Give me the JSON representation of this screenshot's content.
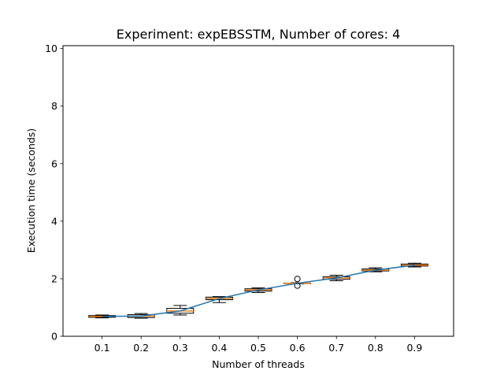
{
  "chart_data": {
    "type": "box",
    "title": "Experiment: expEBSSTM, Number of cores: 4",
    "xlabel": "Number of threads",
    "ylabel": "Execution time (seconds)",
    "ylim": [
      0,
      10.1
    ],
    "yticks": [
      0,
      2,
      4,
      6,
      8,
      10
    ],
    "categories": [
      "0.1",
      "0.2",
      "0.3",
      "0.4",
      "0.5",
      "0.6",
      "0.7",
      "0.8",
      "0.9"
    ],
    "boxes": [
      {
        "whislo": 0.64,
        "q1": 0.66,
        "med": 0.69,
        "q3": 0.72,
        "whishi": 0.74,
        "fliers": []
      },
      {
        "whislo": 0.63,
        "q1": 0.65,
        "med": 0.7,
        "q3": 0.75,
        "whishi": 0.79,
        "fliers": []
      },
      {
        "whislo": 0.74,
        "q1": 0.8,
        "med": 0.88,
        "q3": 0.97,
        "whishi": 1.07,
        "fliers": []
      },
      {
        "whislo": 1.17,
        "q1": 1.27,
        "med": 1.31,
        "q3": 1.36,
        "whishi": 1.38,
        "fliers": []
      },
      {
        "whislo": 1.52,
        "q1": 1.57,
        "med": 1.61,
        "q3": 1.65,
        "whishi": 1.68,
        "fliers": []
      },
      {
        "whislo": 1.82,
        "q1": 1.83,
        "med": 1.84,
        "q3": 1.85,
        "whishi": 1.86,
        "fliers": [
          1.76,
          1.99
        ]
      },
      {
        "whislo": 1.93,
        "q1": 1.98,
        "med": 2.03,
        "q3": 2.07,
        "whishi": 2.12,
        "fliers": []
      },
      {
        "whislo": 2.24,
        "q1": 2.27,
        "med": 2.3,
        "q3": 2.34,
        "whishi": 2.38,
        "fliers": []
      },
      {
        "whislo": 2.41,
        "q1": 2.44,
        "med": 2.47,
        "q3": 2.51,
        "whishi": 2.54,
        "fliers": []
      }
    ],
    "line": {
      "values": [
        0.69,
        0.7,
        0.88,
        1.31,
        1.61,
        1.84,
        2.03,
        2.3,
        2.47
      ]
    },
    "colors": {
      "box": "#000000",
      "median": "#ff7f0e",
      "line": "#1f77b4"
    },
    "grid": false,
    "legend": "none"
  }
}
